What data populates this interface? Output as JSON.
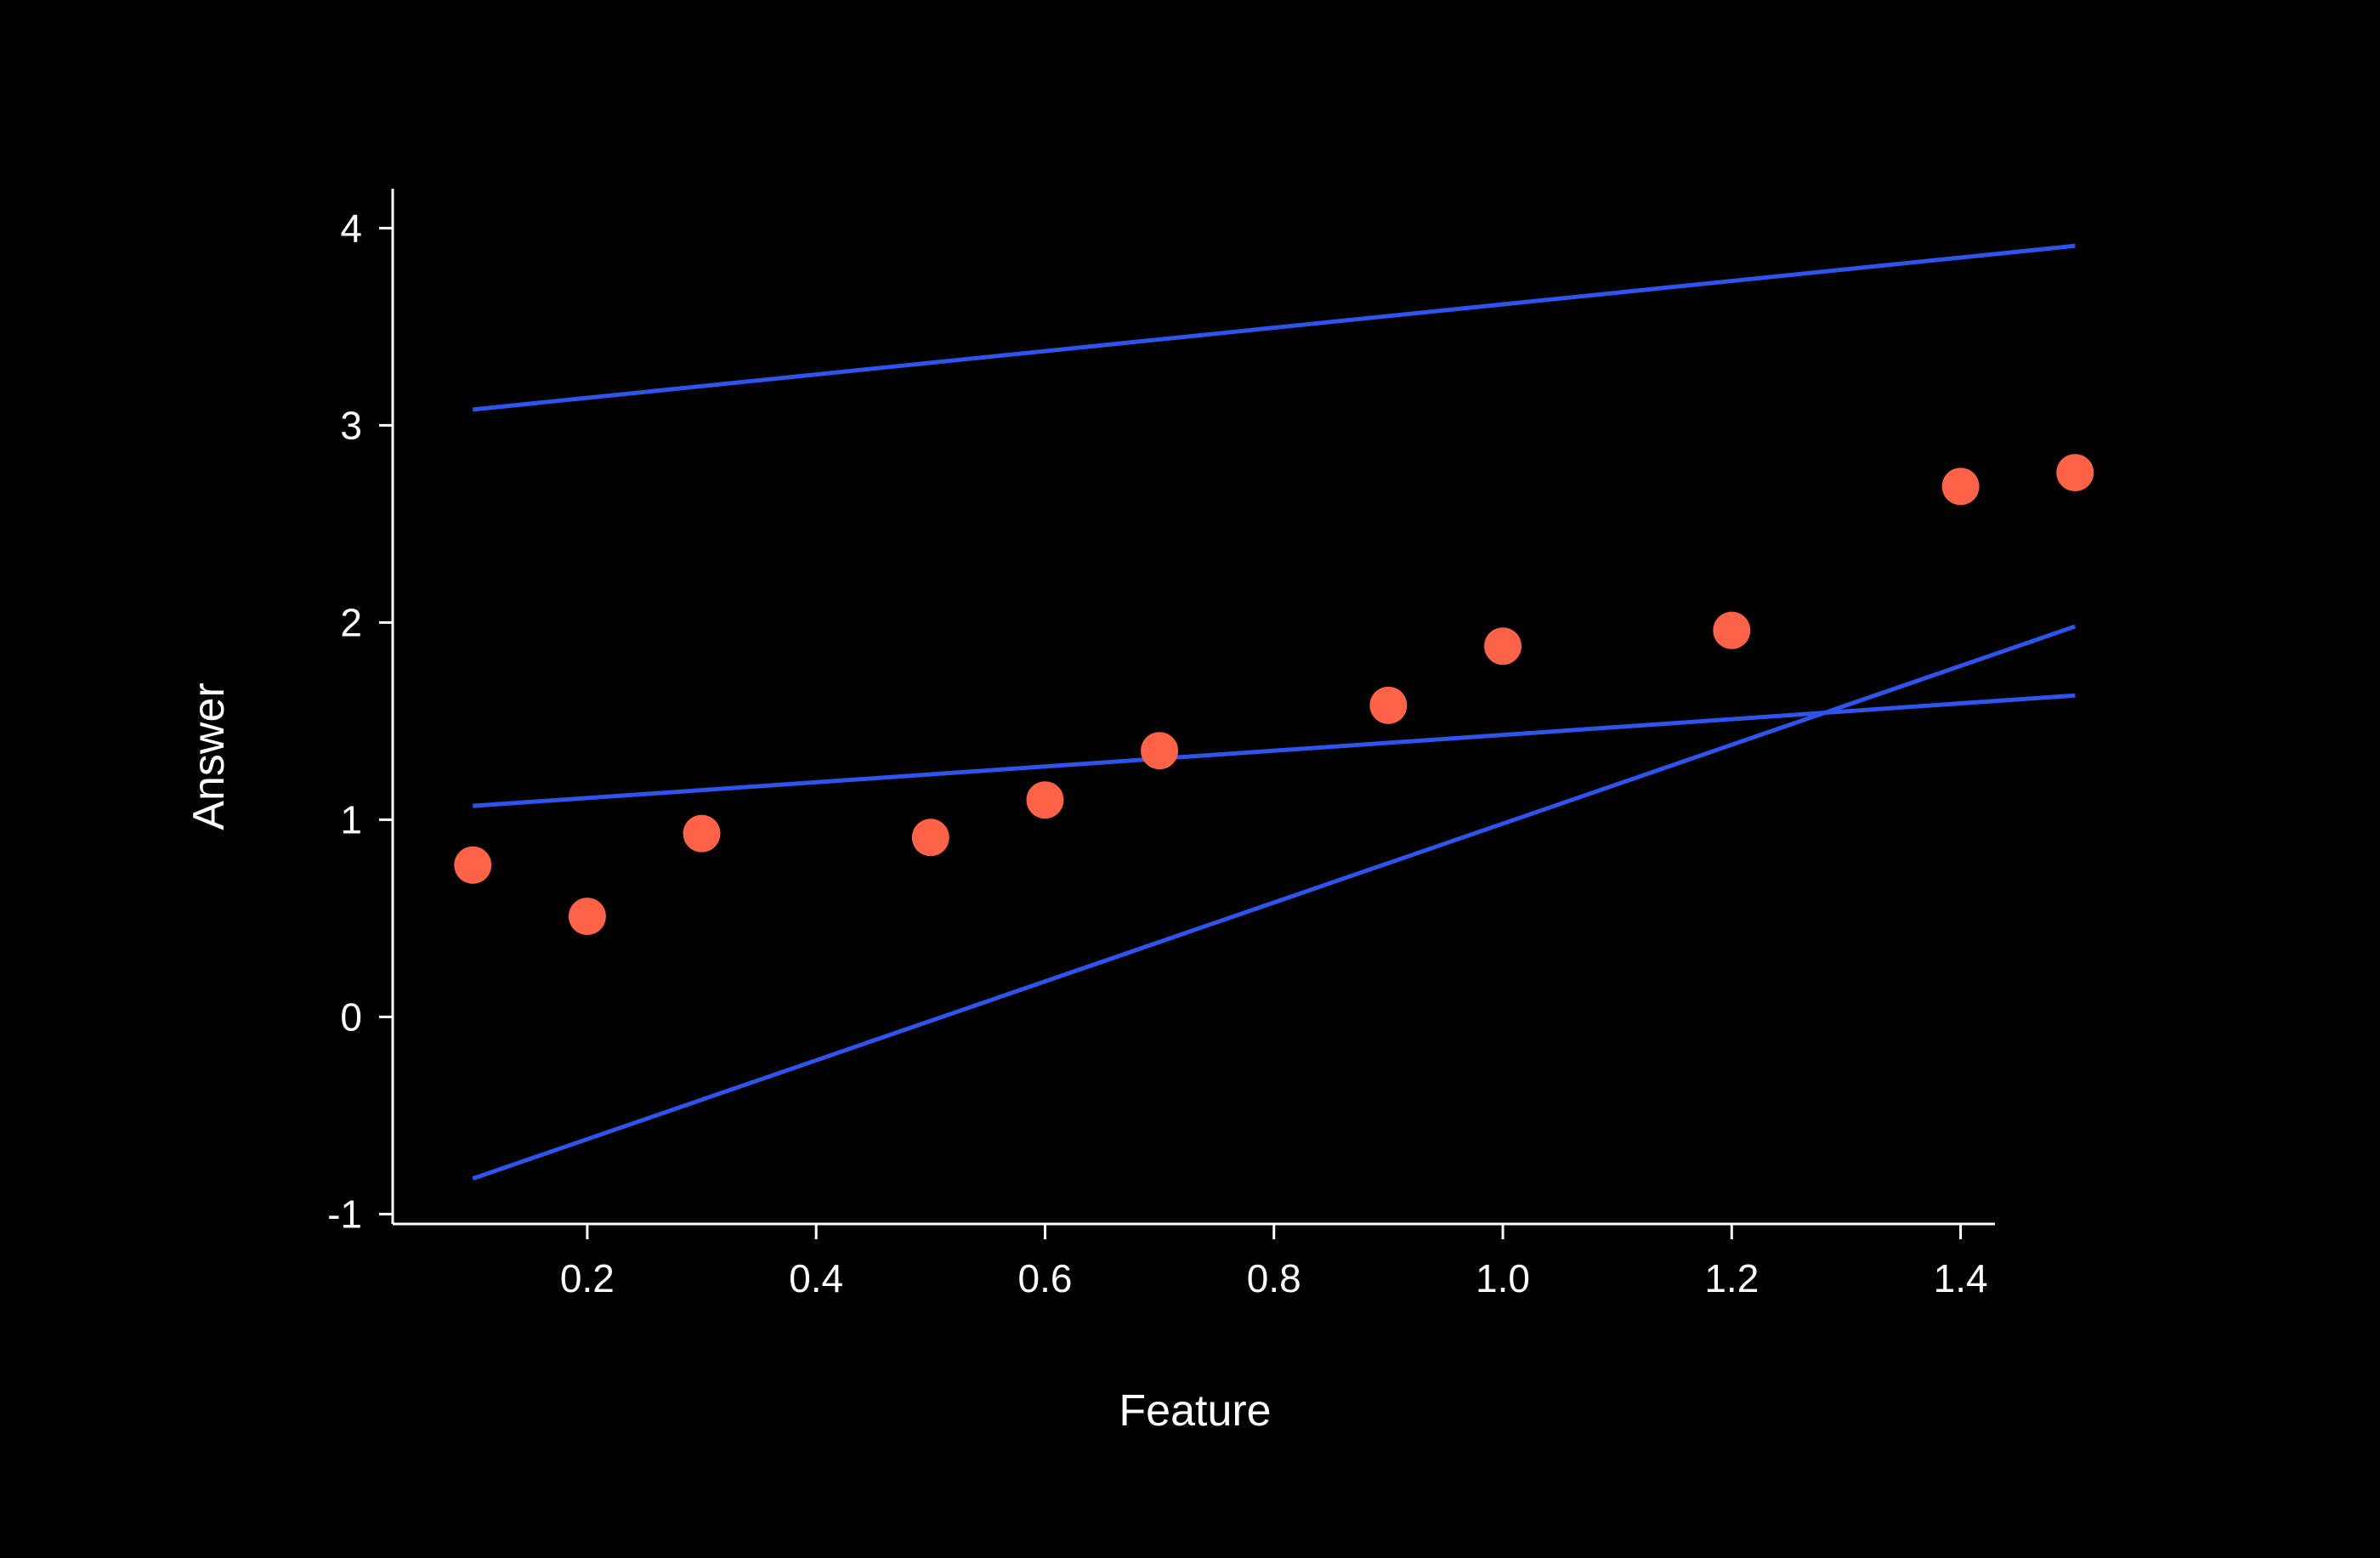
{
  "chart_data": {
    "type": "scatter",
    "title": "",
    "xlabel": "Feature",
    "ylabel": "Answer",
    "xlim": [
      0.03,
      1.43
    ],
    "ylim": [
      -1.05,
      4.2
    ],
    "xticks": [
      0.2,
      0.4,
      0.6,
      0.8,
      1.0,
      1.2,
      1.4
    ],
    "xtick_labels": [
      "0.2",
      "0.4",
      "0.6",
      "0.8",
      "1.0",
      "1.2",
      "1.4"
    ],
    "yticks": [
      -1,
      0,
      1,
      2,
      3,
      4
    ],
    "ytick_labels": [
      "-1",
      "0",
      "1",
      "2",
      "3",
      "4"
    ],
    "grid": false,
    "legend": "none",
    "scatter": {
      "color": "#ff6347",
      "points": [
        {
          "x": 0.1,
          "y": 0.77
        },
        {
          "x": 0.2,
          "y": 0.51
        },
        {
          "x": 0.3,
          "y": 0.93
        },
        {
          "x": 0.5,
          "y": 0.91
        },
        {
          "x": 0.6,
          "y": 1.1
        },
        {
          "x": 0.7,
          "y": 1.35
        },
        {
          "x": 0.9,
          "y": 1.58
        },
        {
          "x": 1.0,
          "y": 1.88
        },
        {
          "x": 1.2,
          "y": 1.96
        },
        {
          "x": 1.4,
          "y": 2.69
        },
        {
          "x": 1.5,
          "y": 2.76
        }
      ]
    },
    "lines": {
      "color": "#2f54eb",
      "series": [
        {
          "x": [
            0.1,
            1.5
          ],
          "y": [
            3.08,
            3.91
          ]
        },
        {
          "x": [
            0.1,
            1.5
          ],
          "y": [
            1.07,
            1.63
          ]
        },
        {
          "x": [
            0.1,
            1.5
          ],
          "y": [
            -0.82,
            1.98
          ]
        }
      ]
    }
  }
}
